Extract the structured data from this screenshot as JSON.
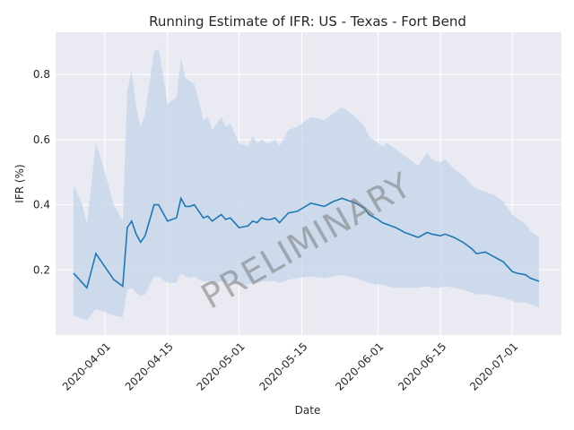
{
  "chart_data": {
    "type": "line",
    "title": "Running Estimate of IFR: US - Texas - Fort Bend",
    "xlabel": "Date",
    "ylabel": "IFR (%)",
    "watermark": "PRELIMINARY",
    "xlim": [
      "2020-03-21",
      "2020-07-12"
    ],
    "ylim": [
      0.0,
      0.93
    ],
    "grid": true,
    "x_ticks": [
      "2020-04-01",
      "2020-04-15",
      "2020-05-01",
      "2020-05-15",
      "2020-06-01",
      "2020-06-15",
      "2020-07-01"
    ],
    "y_ticks": [
      0.2,
      0.4,
      0.6,
      0.8
    ],
    "colors": {
      "line": "#1f77b4",
      "band": "#c3d4e9",
      "plot_bg": "#eaeaf2",
      "grid": "#ffffff"
    },
    "series": [
      {
        "x": [
          "2020-03-25",
          "2020-03-27",
          "2020-03-28",
          "2020-03-30",
          "2020-04-01",
          "2020-04-02",
          "2020-04-03",
          "2020-04-05",
          "2020-04-06",
          "2020-04-07",
          "2020-04-08",
          "2020-04-09",
          "2020-04-10",
          "2020-04-12",
          "2020-04-13",
          "2020-04-14",
          "2020-04-15",
          "2020-04-17",
          "2020-04-18",
          "2020-04-19",
          "2020-04-20",
          "2020-04-21",
          "2020-04-22",
          "2020-04-23",
          "2020-04-24",
          "2020-04-25",
          "2020-04-27",
          "2020-04-28",
          "2020-04-29",
          "2020-04-30",
          "2020-05-01",
          "2020-05-03",
          "2020-05-04",
          "2020-05-05",
          "2020-05-06",
          "2020-05-07",
          "2020-05-08",
          "2020-05-09",
          "2020-05-10",
          "2020-05-12",
          "2020-05-14",
          "2020-05-17",
          "2020-05-20",
          "2020-05-22",
          "2020-05-24",
          "2020-05-27",
          "2020-05-29",
          "2020-05-30",
          "2020-06-01",
          "2020-06-02",
          "2020-06-03",
          "2020-06-05",
          "2020-06-07",
          "2020-06-10",
          "2020-06-12",
          "2020-06-13",
          "2020-06-15",
          "2020-06-16",
          "2020-06-18",
          "2020-06-20",
          "2020-06-22",
          "2020-06-23",
          "2020-06-25",
          "2020-06-27",
          "2020-06-29",
          "2020-06-30",
          "2020-07-01",
          "2020-07-02",
          "2020-07-04",
          "2020-07-05",
          "2020-07-06",
          "2020-07-07"
        ],
        "y": [
          0.19,
          0.16,
          0.145,
          0.25,
          0.21,
          0.19,
          0.17,
          0.15,
          0.33,
          0.35,
          0.31,
          0.285,
          0.305,
          0.4,
          0.4,
          0.375,
          0.35,
          0.36,
          0.42,
          0.395,
          0.395,
          0.4,
          0.38,
          0.36,
          0.365,
          0.35,
          0.37,
          0.355,
          0.36,
          0.345,
          0.33,
          0.335,
          0.35,
          0.345,
          0.36,
          0.355,
          0.355,
          0.36,
          0.345,
          0.375,
          0.38,
          0.405,
          0.395,
          0.41,
          0.42,
          0.405,
          0.39,
          0.37,
          0.355,
          0.345,
          0.34,
          0.33,
          0.315,
          0.3,
          0.315,
          0.31,
          0.305,
          0.31,
          0.3,
          0.285,
          0.265,
          0.25,
          0.255,
          0.24,
          0.225,
          0.21,
          0.195,
          0.19,
          0.185,
          0.175,
          0.17,
          0.165
        ],
        "upper": [
          0.46,
          0.4,
          0.34,
          0.59,
          0.5,
          0.45,
          0.4,
          0.35,
          0.75,
          0.81,
          0.7,
          0.64,
          0.68,
          0.87,
          0.88,
          0.8,
          0.71,
          0.73,
          0.85,
          0.79,
          0.78,
          0.77,
          0.72,
          0.66,
          0.67,
          0.63,
          0.67,
          0.64,
          0.65,
          0.62,
          0.59,
          0.58,
          0.61,
          0.59,
          0.6,
          0.59,
          0.59,
          0.6,
          0.58,
          0.63,
          0.64,
          0.67,
          0.66,
          0.68,
          0.7,
          0.67,
          0.64,
          0.61,
          0.59,
          0.58,
          0.59,
          0.57,
          0.55,
          0.52,
          0.56,
          0.54,
          0.53,
          0.54,
          0.51,
          0.49,
          0.46,
          0.45,
          0.44,
          0.43,
          0.41,
          0.39,
          0.37,
          0.36,
          0.34,
          0.32,
          0.31,
          0.3
        ],
        "lower": [
          0.06,
          0.05,
          0.045,
          0.08,
          0.07,
          0.065,
          0.06,
          0.055,
          0.14,
          0.145,
          0.13,
          0.12,
          0.125,
          0.18,
          0.18,
          0.17,
          0.16,
          0.16,
          0.19,
          0.18,
          0.175,
          0.18,
          0.17,
          0.165,
          0.165,
          0.16,
          0.165,
          0.16,
          0.165,
          0.16,
          0.155,
          0.155,
          0.16,
          0.16,
          0.165,
          0.165,
          0.165,
          0.165,
          0.16,
          0.17,
          0.175,
          0.18,
          0.175,
          0.18,
          0.185,
          0.175,
          0.165,
          0.16,
          0.155,
          0.155,
          0.15,
          0.145,
          0.145,
          0.145,
          0.15,
          0.145,
          0.145,
          0.15,
          0.145,
          0.14,
          0.13,
          0.125,
          0.125,
          0.12,
          0.115,
          0.11,
          0.105,
          0.1,
          0.1,
          0.095,
          0.09,
          0.085
        ]
      }
    ]
  }
}
